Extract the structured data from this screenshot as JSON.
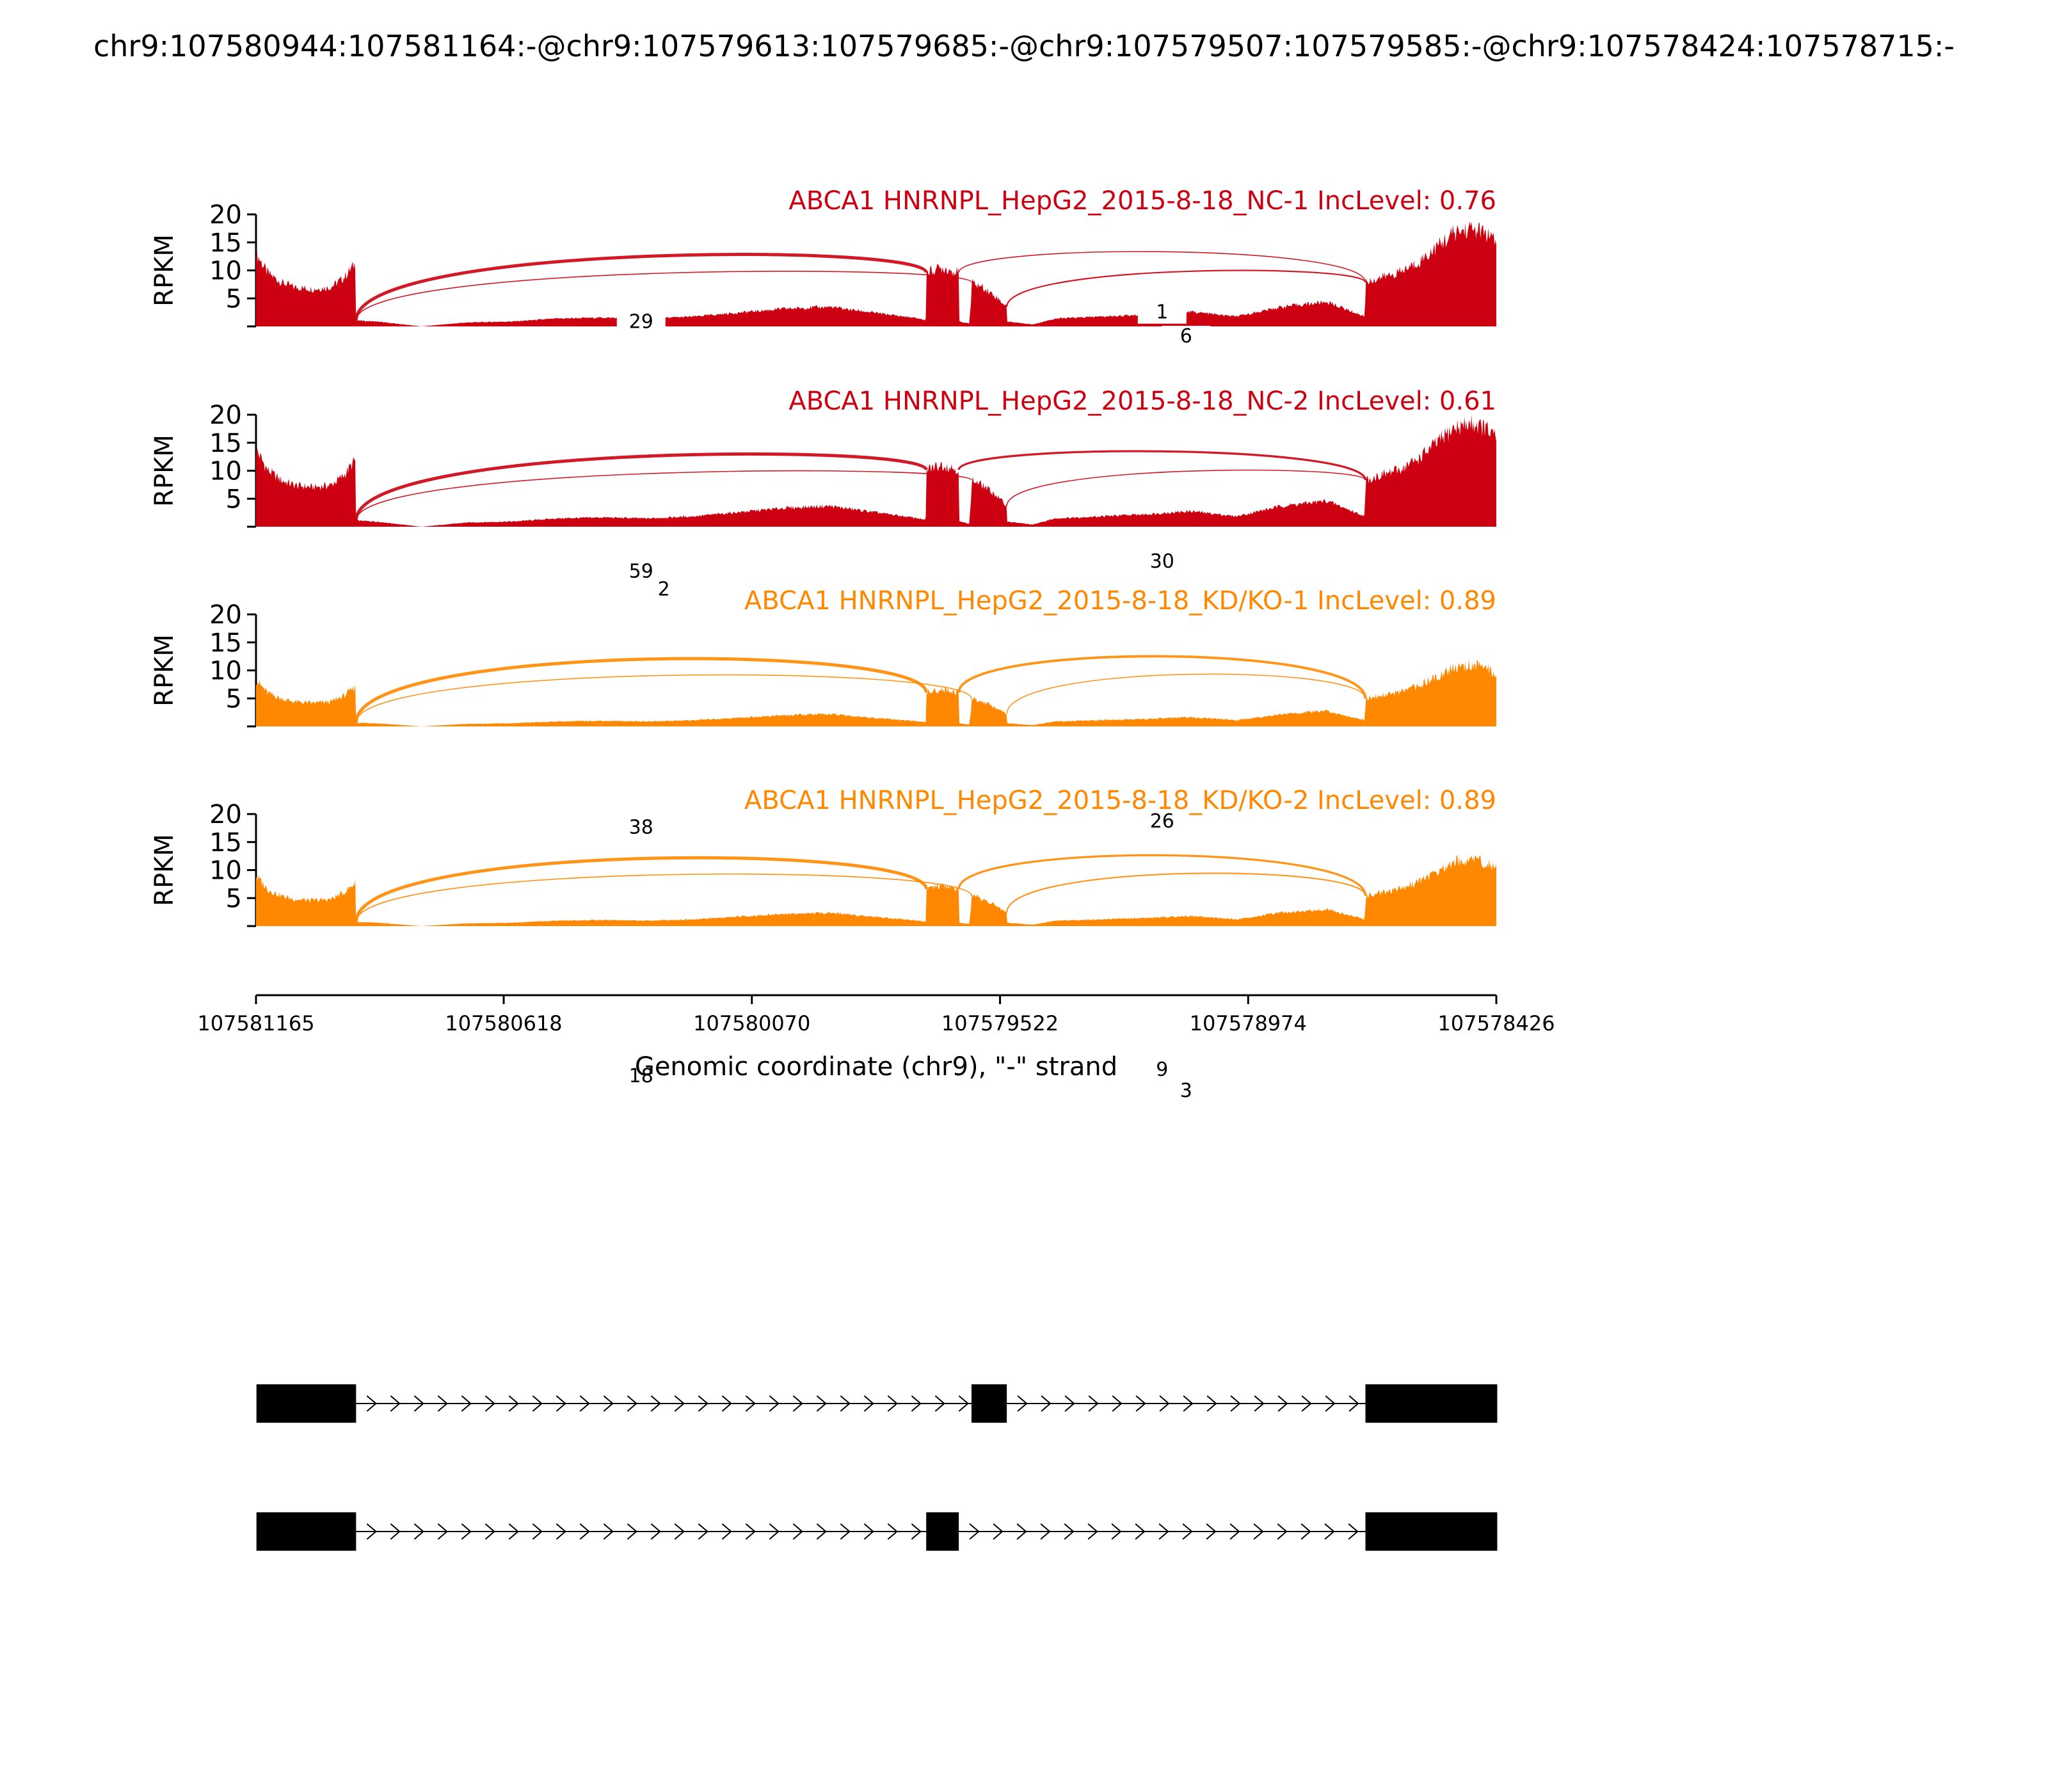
{
  "title": "chr9:107580944:107581164:-@chr9:107579613:107579685:-@chr9:107579507:107579585:-@chr9:107578424:107578715:-",
  "chart_data": {
    "type": "area",
    "subtype": "sashimi",
    "xlabel": "Genomic coordinate (chr9), \"-\" strand",
    "x_axis_reversed": true,
    "xlim": [
      107581165,
      107578426
    ],
    "x_ticks": [
      107581165,
      107580618,
      107580070,
      107579522,
      107578974,
      107578426
    ],
    "x_tick_labels": [
      "107581165",
      "107580618",
      "107580070",
      "107579522",
      "107578974",
      "107578426"
    ],
    "ylabel": "RPKM",
    "ylim": [
      0,
      20
    ],
    "y_tick_labels": [
      "5",
      "10",
      "15",
      "20"
    ],
    "exons": [
      {
        "start": 107581164,
        "end": 107580944
      },
      {
        "start": 107579685,
        "end": 107579613
      },
      {
        "start": 107579585,
        "end": 107579507
      },
      {
        "start": 107578715,
        "end": 107578424
      }
    ],
    "coverage_profile": {
      "x": [
        107581165,
        107581140,
        107581110,
        107581080,
        107581040,
        107581000,
        107580970,
        107580945,
        107580944,
        107580900,
        107580800,
        107580700,
        107580600,
        107580500,
        107580400,
        107580300,
        107580200,
        107580100,
        107580000,
        107579900,
        107579800,
        107579700,
        107579686,
        107579685,
        107579650,
        107579613,
        107579612,
        107579590,
        107579586,
        107579585,
        107579560,
        107579530,
        107579507,
        107579506,
        107579450,
        107579400,
        107579300,
        107579200,
        107579100,
        107579000,
        107578900,
        107578800,
        107578716,
        107578715,
        107578680,
        107578640,
        107578600,
        107578560,
        107578520,
        107578480,
        107578450,
        107578426
      ],
      "y": [
        0.75,
        0.55,
        0.45,
        0.4,
        0.38,
        0.4,
        0.5,
        0.65,
        0.06,
        0.05,
        0.0,
        0.04,
        0.05,
        0.08,
        0.09,
        0.08,
        0.1,
        0.14,
        0.18,
        0.2,
        0.14,
        0.08,
        0.06,
        0.55,
        0.6,
        0.55,
        0.05,
        0.03,
        0.25,
        0.45,
        0.4,
        0.3,
        0.2,
        0.05,
        0.02,
        0.08,
        0.1,
        0.12,
        0.15,
        0.1,
        0.2,
        0.25,
        0.1,
        0.45,
        0.5,
        0.55,
        0.65,
        0.8,
        0.95,
        1.0,
        0.95,
        0.85
      ]
    },
    "series": [
      {
        "name": "ABCA1 HNRNPL_HepG2_2015-8-18_NC-1 IncLevel: 0.76",
        "color": "#cc0011",
        "peak_rpkm": 17.5,
        "junctions": [
          {
            "from": 107580944,
            "to": 107579685,
            "count": 29,
            "label": "29"
          },
          {
            "from": 107580944,
            "to": 107579585,
            "count": 1,
            "label": ""
          },
          {
            "from": 107579613,
            "to": 107578715,
            "count": 1,
            "label": "1"
          },
          {
            "from": 107579507,
            "to": 107578715,
            "count": 6,
            "label": "6"
          }
        ]
      },
      {
        "name": "ABCA1 HNRNPL_HepG2_2015-8-18_NC-2 IncLevel: 0.61",
        "color": "#cc0011",
        "peak_rpkm": 18.5,
        "junctions": [
          {
            "from": 107580944,
            "to": 107579685,
            "count": 59,
            "label": "59"
          },
          {
            "from": 107580944,
            "to": 107579585,
            "count": 2,
            "label": "2"
          },
          {
            "from": 107579613,
            "to": 107578715,
            "count": 30,
            "label": "30"
          },
          {
            "from": 107579507,
            "to": 107578715,
            "count": 1,
            "label": ""
          }
        ]
      },
      {
        "name": "ABCA1 HNRNPL_HepG2_2015-8-18_KD/KO-1 IncLevel: 0.89",
        "color": "#ff8800",
        "peak_rpkm": 11,
        "junctions": [
          {
            "from": 107580944,
            "to": 107579685,
            "count": 38,
            "label": "38"
          },
          {
            "from": 107580944,
            "to": 107579585,
            "count": 1,
            "label": ""
          },
          {
            "from": 107579613,
            "to": 107578715,
            "count": 26,
            "label": "26"
          },
          {
            "from": 107579507,
            "to": 107578715,
            "count": 1,
            "label": ""
          }
        ]
      },
      {
        "name": "ABCA1 HNRNPL_HepG2_2015-8-18_KD/KO-2 IncLevel: 0.89",
        "color": "#ff8800",
        "peak_rpkm": 12,
        "junctions": [
          {
            "from": 107580944,
            "to": 107579685,
            "count": 18,
            "label": "18"
          },
          {
            "from": 107580944,
            "to": 107579585,
            "count": 1,
            "label": ""
          },
          {
            "from": 107579613,
            "to": 107578715,
            "count": 9,
            "label": "9"
          },
          {
            "from": 107579507,
            "to": 107578715,
            "count": 3,
            "label": "3"
          }
        ]
      }
    ],
    "isoforms": [
      {
        "exons": [
          [
            107581164,
            107580944
          ],
          [
            107579585,
            107579507
          ],
          [
            107578715,
            107578424
          ]
        ]
      },
      {
        "exons": [
          [
            107581164,
            107580944
          ],
          [
            107579685,
            107579613
          ],
          [
            107578715,
            107578424
          ]
        ]
      }
    ]
  }
}
